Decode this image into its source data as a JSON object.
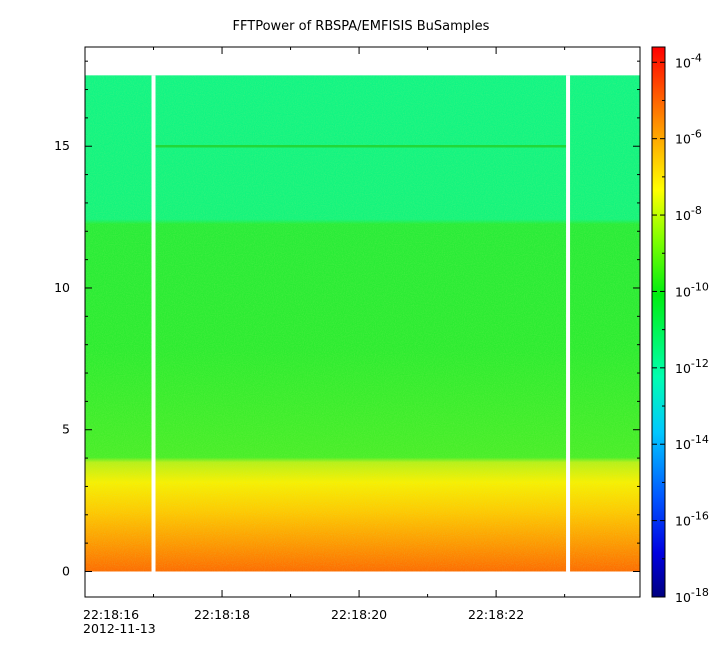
{
  "chart_data": {
    "type": "heatmap",
    "title": "FFTPower of RBSPA/EMFISIS  BuSamples",
    "xlabel": "",
    "ylabel": "",
    "x_tick_labels": [
      "22:18:16",
      "22:18:18",
      "22:18:20",
      "22:18:22"
    ],
    "x_date_label": "2012-11-13",
    "x_range_seconds_after_22_18_16": [
      0,
      8.1
    ],
    "y_tick_labels": [
      "0",
      "5",
      "10",
      "15"
    ],
    "y_ticks": [
      0,
      5,
      10,
      15
    ],
    "ylim": [
      -0.9,
      18.5
    ],
    "colorbar": {
      "scale": "log",
      "range_exponents": [
        -18,
        -3.6
      ],
      "tick_base": "10",
      "tick_exponents": [
        "-18",
        "-16",
        "-14",
        "-12",
        "-10",
        "-8",
        "-6",
        "-4"
      ]
    },
    "spectrogram": {
      "y_data_max": 17.5,
      "gaps_seconds_after_22_18_16": [
        1.0,
        7.05
      ],
      "horizontal_line_y": 15.0,
      "intensity_bands": [
        {
          "y_from": 12.2,
          "y_to": 17.5,
          "power": "~1e-11"
        },
        {
          "y_from": 4.0,
          "y_to": 12.2,
          "power": "~1e-10"
        },
        {
          "y_from": 0,
          "y_to": 4.0,
          "power": "~1e-8 to 1e-6"
        }
      ]
    }
  }
}
